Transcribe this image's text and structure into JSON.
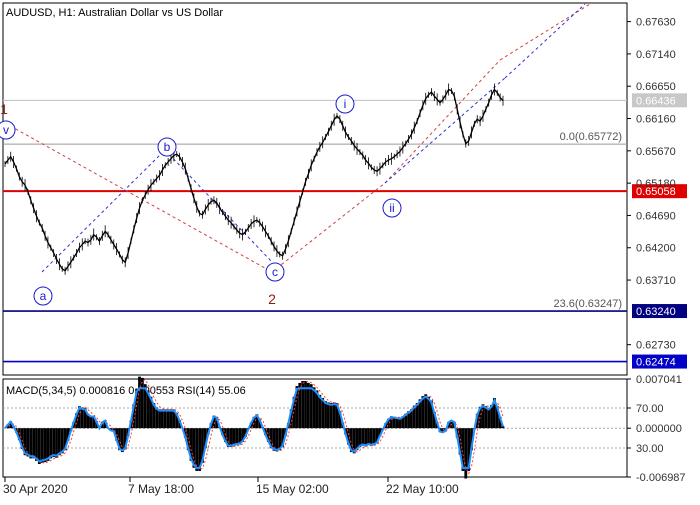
{
  "chart_data": {
    "type": "line",
    "title": "AUDUSD, H1:  Australian Dollar vs US Dollar",
    "x_tick_labels": [
      "30 Apr 2020",
      "7 May 18:00",
      "15 May 02:00",
      "22 May 10:00"
    ],
    "y_axis": {
      "ylim": [
        0.6227,
        0.67912
      ],
      "tick_labels": [
        "0.67630",
        "0.67140",
        "0.66650",
        "0.66160",
        "0.65670",
        "0.65180",
        "0.64690",
        "0.64200",
        "0.63710",
        "0.62730"
      ]
    },
    "series": [
      {
        "values": [
          0.6547,
          0.6553,
          0.6558,
          0.655,
          0.654,
          0.6528,
          0.652,
          0.6515,
          0.6505,
          0.6492,
          0.648,
          0.6468,
          0.6458,
          0.645,
          0.6438,
          0.6428,
          0.642,
          0.6412,
          0.6403,
          0.6395,
          0.6388,
          0.6385,
          0.6392,
          0.6398,
          0.6405,
          0.6412,
          0.642,
          0.6425,
          0.643,
          0.6428,
          0.6432,
          0.644,
          0.6436,
          0.643,
          0.6438,
          0.6445,
          0.644,
          0.6432,
          0.6425,
          0.6418,
          0.641,
          0.6402,
          0.6398,
          0.6412,
          0.643,
          0.6448,
          0.6465,
          0.648,
          0.6492,
          0.65,
          0.6508,
          0.6515,
          0.652,
          0.6525,
          0.653,
          0.6538,
          0.6545,
          0.655,
          0.6555,
          0.656,
          0.6562,
          0.6558,
          0.655,
          0.654,
          0.6525,
          0.651,
          0.6495,
          0.6482,
          0.6472,
          0.647,
          0.6478,
          0.6485,
          0.649,
          0.6492,
          0.6488,
          0.648,
          0.6474,
          0.6468,
          0.6462,
          0.6458,
          0.6452,
          0.6447,
          0.6442,
          0.644,
          0.6444,
          0.645,
          0.6456,
          0.646,
          0.6462,
          0.6458,
          0.6452,
          0.6445,
          0.6438,
          0.643,
          0.6422,
          0.6415,
          0.641,
          0.6408,
          0.6418,
          0.643,
          0.6445,
          0.646,
          0.6475,
          0.649,
          0.6505,
          0.652,
          0.6532,
          0.6545,
          0.6555,
          0.6565,
          0.6573,
          0.658,
          0.6588,
          0.6596,
          0.6605,
          0.6614,
          0.662,
          0.6615,
          0.6605,
          0.6595,
          0.6588,
          0.6582,
          0.6575,
          0.657,
          0.6565,
          0.656,
          0.6553,
          0.6548,
          0.6542,
          0.6538,
          0.6536,
          0.654,
          0.6545,
          0.655,
          0.6553,
          0.6555,
          0.6558,
          0.6562,
          0.6566,
          0.6572,
          0.6578,
          0.6585,
          0.6592,
          0.6602,
          0.6612,
          0.6624,
          0.6636,
          0.6646,
          0.6652,
          0.6656,
          0.665,
          0.6645,
          0.664,
          0.6645,
          0.6652,
          0.666,
          0.6658,
          0.665,
          0.663,
          0.661,
          0.6592,
          0.6578,
          0.6582,
          0.6595,
          0.6608,
          0.6615,
          0.6612,
          0.662,
          0.663,
          0.664,
          0.6652,
          0.666,
          0.6655,
          0.6648,
          0.6643
        ],
        "last_value": "0.66436"
      }
    ],
    "horizontal_lines": [
      {
        "price": 0.66436,
        "label": "0.66436",
        "color": "#c0c0c0"
      },
      {
        "price": 0.65772,
        "label": "0.0(0.65772)",
        "color": "#9a9a9a"
      },
      {
        "price": 0.65058,
        "label": "0.65058",
        "color": "#e00000"
      },
      {
        "price": 0.6324,
        "label": "0.63240",
        "color": "#000080"
      },
      {
        "price": 0.62474,
        "label": "0.62474",
        "color": "#0000c8"
      }
    ],
    "fib_label": "23.6(0.63247)",
    "wave_labels": [
      {
        "text": "1",
        "color": "#8b1a1a"
      },
      {
        "text": "v",
        "color": "#1a1acc",
        "circled": true
      },
      {
        "text": "a",
        "color": "#1a1acc",
        "circled": true
      },
      {
        "text": "b",
        "color": "#1a1acc",
        "circled": true
      },
      {
        "text": "c",
        "color": "#1a1acc",
        "circled": true
      },
      {
        "text": "2",
        "color": "#8b1a1a"
      },
      {
        "text": "i",
        "color": "#1a1acc",
        "circled": true
      },
      {
        "text": "ii",
        "color": "#1a1acc",
        "circled": true
      }
    ],
    "indicator": {
      "label": "MACD(5,34,5) 0.000816 0.000553 RSI(14) 55.06",
      "ylim": [
        -0.006987,
        0.007041
      ],
      "tick_labels": [
        "0.007041",
        "70.00",
        "0.000000",
        "30.00",
        "-0.006987"
      ],
      "rsi_color": "#1e90ff",
      "signal_color": "#ff4040"
    },
    "colors": {
      "grid": "#c8c8c8",
      "price_line": "#000000",
      "trend_red": "#d04040",
      "trend_blue": "#3030d0"
    }
  }
}
